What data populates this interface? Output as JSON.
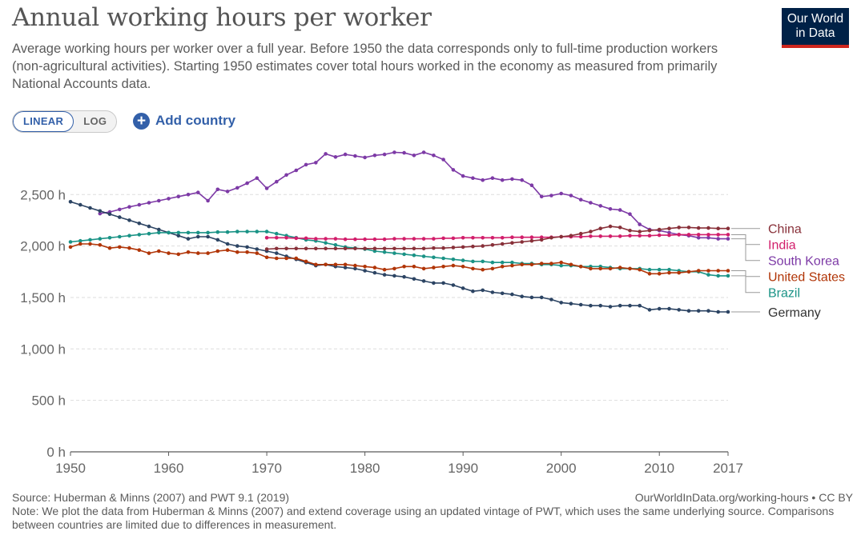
{
  "header": {
    "title": "Annual working hours per worker",
    "subtitle": "Average working hours per worker over a full year. Before 1950 the data corresponds only to full-time production workers (non-agricultural activities). Starting 1950 estimates cover total hours worked in the economy as measured from primarily National Accounts data.",
    "logo_line1": "Our World",
    "logo_line2": "in Data"
  },
  "controls": {
    "linear_label": "LINEAR",
    "log_label": "LOG",
    "add_country_label": "Add country",
    "add_icon": "plus-circle-icon"
  },
  "footer": {
    "source": "Source: Huberman & Minns (2007) and PWT 9.1 (2019)",
    "url": "OurWorldInData.org/working-hours • CC BY",
    "note": "Note: We plot the data from Huberman & Minns (2007) and extend coverage using an updated vintage of PWT, which uses the same underlying source. Comparisons between countries are limited due to differences in measurement."
  },
  "colors": {
    "brand_navy": "#002147",
    "brand_red": "#ce261e",
    "accent_blue": "#3360a9"
  },
  "chart_data": {
    "type": "line",
    "x_ticks": [
      1950,
      1960,
      1970,
      1980,
      1990,
      2000,
      2010,
      2017
    ],
    "y_ticks": [
      0,
      500,
      1000,
      1500,
      2000,
      2500
    ],
    "y_tick_labels": [
      "0 h",
      "500 h",
      "1,000 h",
      "1,500 h",
      "2,000 h",
      "2,500 h"
    ],
    "xlim": [
      1950,
      2017
    ],
    "ylim": [
      0,
      2900
    ],
    "grid": "horizontal dashed",
    "legend": "right, labels at line ends",
    "series": [
      {
        "name": "South Korea",
        "color": "#7d3aa6",
        "x": [
          1953,
          1954,
          1955,
          1956,
          1957,
          1958,
          1959,
          1960,
          1961,
          1962,
          1963,
          1964,
          1965,
          1966,
          1967,
          1968,
          1969,
          1970,
          1971,
          1972,
          1973,
          1974,
          1975,
          1976,
          1977,
          1978,
          1979,
          1980,
          1981,
          1982,
          1983,
          1984,
          1985,
          1986,
          1987,
          1988,
          1989,
          1990,
          1991,
          1992,
          1993,
          1994,
          1995,
          1996,
          1997,
          1998,
          1999,
          2000,
          2001,
          2002,
          2003,
          2004,
          2005,
          2006,
          2007,
          2008,
          2009,
          2010,
          2011,
          2012,
          2013,
          2014,
          2015,
          2016,
          2017
        ],
        "values": [
          2315,
          2330,
          2355,
          2380,
          2400,
          2420,
          2440,
          2460,
          2480,
          2500,
          2520,
          2440,
          2550,
          2530,
          2565,
          2610,
          2660,
          2560,
          2625,
          2690,
          2735,
          2790,
          2810,
          2895,
          2865,
          2890,
          2875,
          2860,
          2880,
          2890,
          2910,
          2905,
          2880,
          2910,
          2880,
          2840,
          2740,
          2680,
          2660,
          2640,
          2660,
          2640,
          2650,
          2640,
          2590,
          2480,
          2490,
          2510,
          2490,
          2450,
          2420,
          2390,
          2360,
          2350,
          2310,
          2210,
          2160,
          2150,
          2130,
          2110,
          2100,
          2080,
          2080,
          2070,
          2070
        ]
      },
      {
        "name": "Germany",
        "color": "#2c4463",
        "x": [
          1950,
          1951,
          1952,
          1953,
          1954,
          1955,
          1956,
          1957,
          1958,
          1959,
          1960,
          1961,
          1962,
          1963,
          1964,
          1965,
          1966,
          1967,
          1968,
          1969,
          1970,
          1971,
          1972,
          1973,
          1974,
          1975,
          1976,
          1977,
          1978,
          1979,
          1980,
          1981,
          1982,
          1983,
          1984,
          1985,
          1986,
          1987,
          1988,
          1989,
          1990,
          1991,
          1992,
          1993,
          1994,
          1995,
          1996,
          1997,
          1998,
          1999,
          2000,
          2001,
          2002,
          2003,
          2004,
          2005,
          2006,
          2007,
          2008,
          2009,
          2010,
          2011,
          2012,
          2013,
          2014,
          2015,
          2016,
          2017
        ],
        "values": [
          2430,
          2400,
          2370,
          2340,
          2310,
          2280,
          2250,
          2220,
          2190,
          2160,
          2130,
          2100,
          2070,
          2090,
          2090,
          2060,
          2020,
          2000,
          1990,
          1970,
          1950,
          1930,
          1900,
          1870,
          1840,
          1810,
          1820,
          1800,
          1790,
          1780,
          1760,
          1740,
          1720,
          1710,
          1700,
          1680,
          1660,
          1640,
          1640,
          1620,
          1590,
          1560,
          1570,
          1550,
          1540,
          1530,
          1510,
          1500,
          1500,
          1480,
          1450,
          1440,
          1430,
          1420,
          1420,
          1410,
          1420,
          1420,
          1420,
          1380,
          1390,
          1390,
          1380,
          1370,
          1370,
          1370,
          1360,
          1360
        ]
      },
      {
        "name": "Brazil",
        "color": "#1a9386",
        "x": [
          1950,
          1951,
          1952,
          1953,
          1954,
          1955,
          1956,
          1957,
          1958,
          1959,
          1960,
          1961,
          1962,
          1963,
          1964,
          1965,
          1966,
          1967,
          1968,
          1969,
          1970,
          1971,
          1972,
          1973,
          1974,
          1975,
          1976,
          1977,
          1978,
          1979,
          1980,
          1981,
          1982,
          1983,
          1984,
          1985,
          1986,
          1987,
          1988,
          1989,
          1990,
          1991,
          1992,
          1993,
          1994,
          1995,
          1996,
          1997,
          1998,
          1999,
          2000,
          2001,
          2002,
          2003,
          2004,
          2005,
          2006,
          2007,
          2008,
          2009,
          2010,
          2011,
          2012,
          2013,
          2014,
          2015,
          2016,
          2017
        ],
        "values": [
          2040,
          2050,
          2060,
          2070,
          2080,
          2090,
          2100,
          2110,
          2120,
          2130,
          2130,
          2130,
          2130,
          2130,
          2130,
          2135,
          2135,
          2140,
          2140,
          2140,
          2140,
          2120,
          2100,
          2080,
          2060,
          2050,
          2030,
          2010,
          1990,
          1980,
          1970,
          1950,
          1940,
          1930,
          1920,
          1910,
          1900,
          1890,
          1880,
          1870,
          1860,
          1850,
          1850,
          1840,
          1840,
          1840,
          1830,
          1830,
          1820,
          1820,
          1810,
          1810,
          1800,
          1800,
          1800,
          1790,
          1780,
          1780,
          1780,
          1770,
          1770,
          1770,
          1760,
          1750,
          1750,
          1720,
          1710,
          1710
        ]
      },
      {
        "name": "United States",
        "color": "#b13507",
        "x": [
          1950,
          1951,
          1952,
          1953,
          1954,
          1955,
          1956,
          1957,
          1958,
          1959,
          1960,
          1961,
          1962,
          1963,
          1964,
          1965,
          1966,
          1967,
          1968,
          1969,
          1970,
          1971,
          1972,
          1973,
          1974,
          1975,
          1976,
          1977,
          1978,
          1979,
          1980,
          1981,
          1982,
          1983,
          1984,
          1985,
          1986,
          1987,
          1988,
          1989,
          1990,
          1991,
          1992,
          1993,
          1994,
          1995,
          1996,
          1997,
          1998,
          1999,
          2000,
          2001,
          2002,
          2003,
          2004,
          2005,
          2006,
          2007,
          2008,
          2009,
          2010,
          2011,
          2012,
          2013,
          2014,
          2015,
          2016,
          2017
        ],
        "values": [
          1990,
          2020,
          2020,
          2010,
          1980,
          1990,
          1980,
          1960,
          1930,
          1950,
          1930,
          1920,
          1940,
          1930,
          1930,
          1950,
          1960,
          1940,
          1940,
          1930,
          1890,
          1880,
          1880,
          1880,
          1850,
          1820,
          1820,
          1820,
          1820,
          1810,
          1800,
          1790,
          1770,
          1780,
          1800,
          1800,
          1780,
          1790,
          1800,
          1810,
          1800,
          1780,
          1770,
          1780,
          1800,
          1810,
          1820,
          1820,
          1830,
          1830,
          1840,
          1820,
          1800,
          1780,
          1780,
          1780,
          1790,
          1780,
          1770,
          1730,
          1730,
          1740,
          1740,
          1750,
          1760,
          1760,
          1760,
          1760
        ]
      },
      {
        "name": "India",
        "color": "#d21e6b",
        "x": [
          1970,
          1971,
          1972,
          1973,
          1974,
          1975,
          1976,
          1977,
          1978,
          1979,
          1980,
          1981,
          1982,
          1983,
          1984,
          1985,
          1986,
          1987,
          1988,
          1989,
          1990,
          1991,
          1992,
          1993,
          1994,
          1995,
          1996,
          1997,
          1998,
          1999,
          2000,
          2001,
          2002,
          2003,
          2004,
          2005,
          2006,
          2007,
          2008,
          2009,
          2010,
          2011,
          2012,
          2013,
          2014,
          2015,
          2016,
          2017
        ],
        "values": [
          2080,
          2080,
          2080,
          2075,
          2075,
          2070,
          2070,
          2070,
          2065,
          2065,
          2065,
          2065,
          2065,
          2070,
          2070,
          2070,
          2070,
          2070,
          2075,
          2075,
          2080,
          2080,
          2080,
          2080,
          2080,
          2085,
          2085,
          2085,
          2085,
          2085,
          2090,
          2090,
          2090,
          2095,
          2095,
          2095,
          2095,
          2100,
          2100,
          2100,
          2105,
          2105,
          2110,
          2110,
          2110,
          2110,
          2110,
          2110
        ]
      },
      {
        "name": "China",
        "color": "#883039",
        "x": [
          1970,
          1971,
          1972,
          1973,
          1974,
          1975,
          1976,
          1977,
          1978,
          1979,
          1980,
          1981,
          1982,
          1983,
          1984,
          1985,
          1986,
          1987,
          1988,
          1989,
          1990,
          1991,
          1992,
          1993,
          1994,
          1995,
          1996,
          1997,
          1998,
          1999,
          2000,
          2001,
          2002,
          2003,
          2004,
          2005,
          2006,
          2007,
          2008,
          2009,
          2010,
          2011,
          2012,
          2013,
          2014,
          2015,
          2016,
          2017
        ],
        "values": [
          1970,
          1975,
          1975,
          1975,
          1975,
          1975,
          1975,
          1975,
          1975,
          1975,
          1975,
          1975,
          1975,
          1975,
          1975,
          1975,
          1975,
          1980,
          1980,
          1985,
          1990,
          1995,
          2000,
          2010,
          2020,
          2030,
          2040,
          2050,
          2060,
          2080,
          2090,
          2100,
          2120,
          2140,
          2170,
          2190,
          2180,
          2150,
          2140,
          2150,
          2160,
          2170,
          2180,
          2180,
          2175,
          2175,
          2170,
          2170
        ]
      }
    ]
  }
}
